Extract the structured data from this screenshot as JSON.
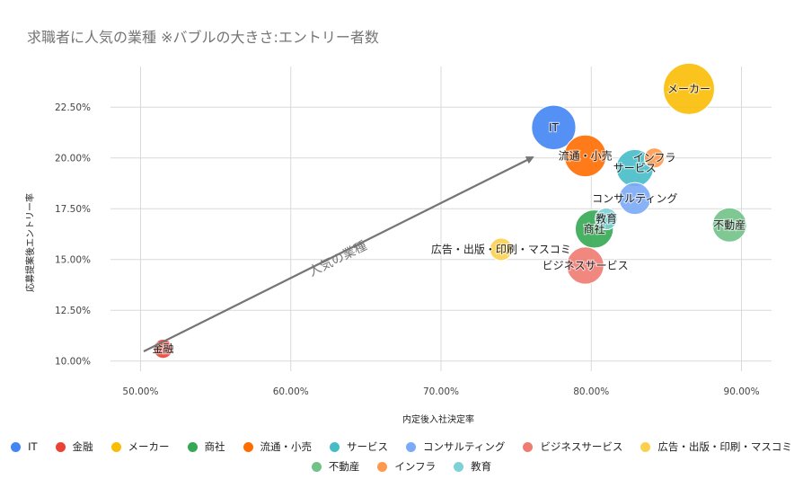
{
  "chart_data": {
    "type": "bubble",
    "title": "求職者に人気の業種  ※バブルの大きさ:エントリー者数",
    "xlabel": "内定後入社決定率",
    "ylabel": "応募提案後エントリー率",
    "xlim": [
      0.48,
      0.92
    ],
    "ylim": [
      0.095,
      0.245
    ],
    "x_ticks": [
      "50.00%",
      "60.00%",
      "70.00%",
      "80.00%",
      "90.00%"
    ],
    "y_ticks": [
      "10.00%",
      "12.50%",
      "15.00%",
      "17.50%",
      "20.00%",
      "22.50%"
    ],
    "grid": true,
    "legend_position": "bottom",
    "series": [
      {
        "name": "IT",
        "x": 0.775,
        "y": 0.215,
        "size": 2.7,
        "color": "#4285F4"
      },
      {
        "name": "金融",
        "x": 0.515,
        "y": 0.106,
        "size": 0.5,
        "color": "#EA4335"
      },
      {
        "name": "メーカー",
        "x": 0.865,
        "y": 0.234,
        "size": 3.6,
        "color": "#FBBC04"
      },
      {
        "name": "商社",
        "x": 0.802,
        "y": 0.165,
        "size": 2.0,
        "color": "#34A853"
      },
      {
        "name": "流通・小売",
        "x": 0.796,
        "y": 0.201,
        "size": 2.4,
        "color": "#FF6D01"
      },
      {
        "name": "サービス",
        "x": 0.829,
        "y": 0.195,
        "size": 1.9,
        "color": "#46BDC6"
      },
      {
        "name": "コンサルティング",
        "x": 0.829,
        "y": 0.18,
        "size": 1.4,
        "color": "#7BAAF7"
      },
      {
        "name": "ビジネスサービス",
        "x": 0.796,
        "y": 0.147,
        "size": 1.9,
        "color": "#F07B72"
      },
      {
        "name": "広告・出版・印刷・マスコミ",
        "x": 0.74,
        "y": 0.155,
        "size": 0.7,
        "color": "#FCD04F"
      },
      {
        "name": "不動産",
        "x": 0.892,
        "y": 0.167,
        "size": 1.6,
        "color": "#71C287"
      },
      {
        "name": "インフラ",
        "x": 0.842,
        "y": 0.2,
        "size": 0.55,
        "color": "#FF994D"
      },
      {
        "name": "教育",
        "x": 0.81,
        "y": 0.17,
        "size": 0.65,
        "color": "#7ED1D7"
      }
    ],
    "annotation": {
      "text": "人気の業種"
    }
  }
}
